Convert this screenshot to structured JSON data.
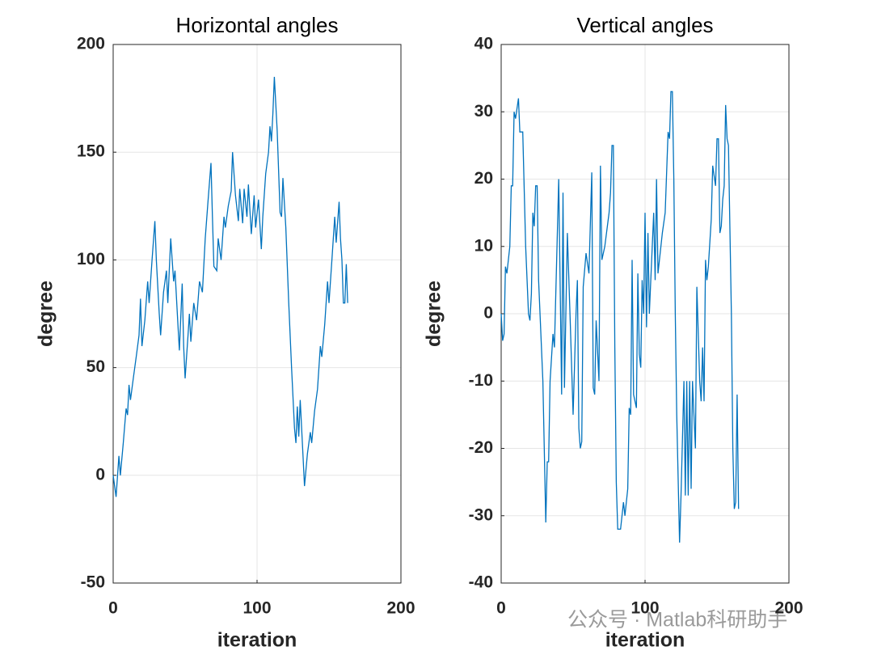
{
  "chart_data": [
    {
      "type": "line",
      "title": "Horizontal angles",
      "xlabel": "iteration",
      "ylabel": "degree",
      "color": "#0072bd",
      "grid": true,
      "xlim": [
        0,
        200
      ],
      "xticks": [
        0,
        100,
        200
      ],
      "ylim": [
        -50,
        200
      ],
      "yticks": [
        -50,
        0,
        50,
        100,
        150,
        200
      ],
      "x": [
        0,
        2,
        4,
        5,
        7,
        9,
        10,
        11,
        12,
        14,
        16,
        18,
        19,
        20,
        22,
        24,
        25,
        27,
        29,
        30,
        32,
        33,
        35,
        37,
        38,
        40,
        42,
        43,
        45,
        46,
        48,
        49,
        50,
        52,
        53,
        54,
        56,
        58,
        60,
        62,
        64,
        66,
        68,
        69,
        70,
        72,
        73,
        75,
        77,
        78,
        80,
        82,
        83,
        85,
        87,
        88,
        90,
        91,
        93,
        94,
        96,
        98,
        99,
        101,
        103,
        104,
        106,
        108,
        109,
        110,
        111,
        112,
        114,
        116,
        117,
        118,
        120,
        122,
        124,
        126,
        127,
        128,
        129,
        130,
        132,
        133,
        135,
        137,
        138,
        140,
        142,
        144,
        145,
        147,
        149,
        150,
        152,
        154,
        155,
        157,
        158,
        159,
        160,
        161,
        162,
        163
      ],
      "values": [
        0,
        -10,
        9,
        0,
        15,
        31,
        28,
        42,
        35,
        45,
        55,
        65,
        82,
        60,
        72,
        90,
        80,
        100,
        118,
        100,
        75,
        65,
        85,
        95,
        80,
        110,
        90,
        95,
        70,
        58,
        89,
        60,
        45,
        65,
        75,
        62,
        80,
        72,
        90,
        85,
        110,
        128,
        145,
        120,
        97,
        95,
        110,
        100,
        120,
        115,
        125,
        132,
        150,
        130,
        118,
        133,
        117,
        133,
        120,
        135,
        112,
        130,
        115,
        128,
        105,
        120,
        140,
        150,
        162,
        155,
        168,
        185,
        160,
        122,
        120,
        138,
        115,
        80,
        50,
        22,
        15,
        32,
        18,
        35,
        8,
        -5,
        10,
        20,
        15,
        30,
        40,
        60,
        55,
        70,
        90,
        80,
        100,
        120,
        108,
        127,
        110,
        100,
        80,
        80,
        98,
        80
      ]
    },
    {
      "type": "line",
      "title": "Vertical angles",
      "xlabel": "iteration",
      "ylabel": "degree",
      "color": "#0072bd",
      "grid": true,
      "xlim": [
        0,
        200
      ],
      "xticks": [
        0,
        100,
        200
      ],
      "ylim": [
        -40,
        40
      ],
      "yticks": [
        -40,
        -30,
        -20,
        -10,
        0,
        10,
        20,
        30,
        40
      ],
      "x": [
        0,
        1,
        2,
        3,
        4,
        6,
        7,
        8,
        9,
        10,
        12,
        13,
        15,
        17,
        19,
        20,
        21,
        22,
        23,
        24,
        25,
        26,
        29,
        31,
        32,
        33,
        34,
        36,
        37,
        40,
        42,
        43,
        44,
        46,
        48,
        50,
        52,
        53,
        54,
        55,
        56,
        57,
        59,
        61,
        63,
        64,
        65,
        66,
        68,
        69,
        70,
        72,
        75,
        76,
        77,
        78,
        79,
        80,
        81,
        83,
        85,
        86,
        88,
        89,
        90,
        91,
        92,
        94,
        95,
        96,
        97,
        98,
        99,
        100,
        101,
        102,
        103,
        106,
        107,
        108,
        109,
        111,
        112,
        114,
        116,
        117,
        118,
        119,
        120,
        121,
        122,
        124,
        125,
        127,
        128,
        129,
        130,
        131,
        132,
        133,
        135,
        136,
        138,
        139,
        140,
        141,
        142,
        143,
        144,
        146,
        147,
        149,
        150,
        151,
        152,
        153,
        154,
        155,
        156,
        157,
        158,
        160,
        161,
        162,
        163,
        164,
        165
      ],
      "values": [
        0,
        -4,
        -3,
        7,
        6,
        10,
        19,
        19,
        30,
        29,
        32,
        27,
        27,
        10,
        0,
        -1,
        3,
        15,
        13,
        19,
        19,
        5,
        -10,
        -31,
        -22,
        -22,
        -10,
        -3,
        -5,
        20,
        -12,
        18,
        -11,
        12,
        -1,
        -15,
        0,
        5,
        -17,
        -20,
        -19,
        4,
        9,
        6,
        21,
        -11,
        -12,
        -1,
        -10,
        22,
        8,
        10,
        15,
        18,
        25,
        25,
        -5,
        -25,
        -32,
        -32,
        -28,
        -30,
        -26,
        -14,
        -15,
        8,
        -12,
        -14,
        6,
        -6,
        -8,
        5,
        0,
        15,
        -2,
        12,
        0,
        15,
        5,
        20,
        6,
        10,
        12,
        15,
        27,
        26,
        33,
        33,
        20,
        0,
        -15,
        -34,
        -27,
        -10,
        -27,
        -10,
        -27,
        -10,
        -26,
        -10,
        -20,
        4,
        -10,
        -13,
        -5,
        -13,
        8,
        5,
        7,
        14,
        22,
        19,
        26,
        26,
        12,
        13,
        17,
        19,
        31,
        26,
        25,
        0,
        -20,
        -29,
        -28,
        -12,
        -29
      ]
    }
  ],
  "watermark": "公众号 · Matlab科研助手"
}
